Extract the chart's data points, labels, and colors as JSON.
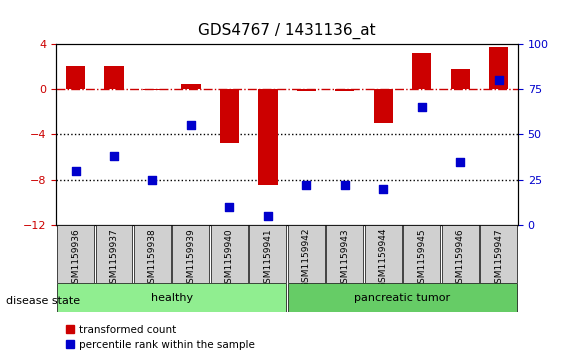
{
  "title": "GDS4767 / 1431136_at",
  "samples": [
    "GSM1159936",
    "GSM1159937",
    "GSM1159938",
    "GSM1159939",
    "GSM1159940",
    "GSM1159941",
    "GSM1159942",
    "GSM1159943",
    "GSM1159944",
    "GSM1159945",
    "GSM1159946",
    "GSM1159947"
  ],
  "transformed_count": [
    2.0,
    2.0,
    -0.1,
    0.4,
    -4.8,
    -8.5,
    -0.2,
    -0.2,
    -3.0,
    3.2,
    1.8,
    3.7
  ],
  "percentile_rank": [
    30,
    38,
    25,
    55,
    10,
    5,
    22,
    22,
    20,
    65,
    35,
    80
  ],
  "ylim_left": [
    -12,
    4
  ],
  "ylim_right": [
    0,
    100
  ],
  "yticks_left": [
    -12,
    -8,
    -4,
    0,
    4
  ],
  "yticks_right": [
    0,
    25,
    50,
    75,
    100
  ],
  "bar_color": "#cc0000",
  "scatter_color": "#0000cc",
  "hline_color": "#cc0000",
  "hline_y": 0,
  "dotted_lines": [
    -4,
    -8
  ],
  "groups": [
    {
      "label": "healthy",
      "start": 0,
      "end": 5,
      "color": "#90ee90"
    },
    {
      "label": "pancreatic tumor",
      "start": 6,
      "end": 11,
      "color": "#66cc66"
    }
  ],
  "disease_state_label": "disease state",
  "legend_items": [
    {
      "label": "transformed count",
      "color": "#cc0000",
      "marker": "s"
    },
    {
      "label": "percentile rank within the sample",
      "color": "#0000cc",
      "marker": "s"
    }
  ]
}
